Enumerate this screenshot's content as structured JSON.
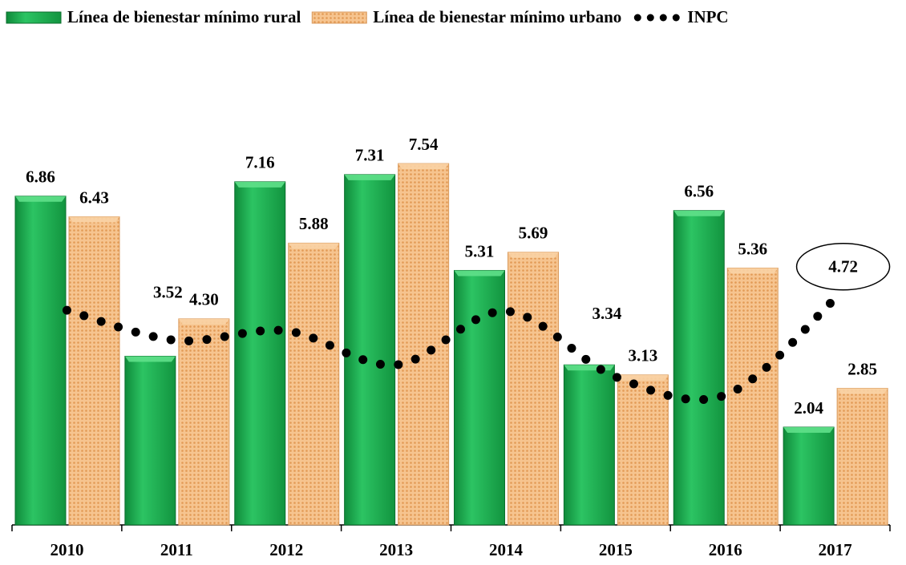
{
  "chart_data": {
    "type": "bar",
    "categories": [
      "2010",
      "2011",
      "2012",
      "2013",
      "2014",
      "2015",
      "2016",
      "2017"
    ],
    "series": [
      {
        "name": "Línea de bienestar mínimo rural",
        "color": "#1fb04f",
        "values": [
          6.86,
          3.52,
          7.16,
          7.31,
          5.31,
          3.34,
          6.56,
          2.04
        ],
        "value_labels": [
          "6.86",
          "3.52",
          "7.16",
          "7.31",
          "5.31",
          "3.34",
          "6.56",
          "2.04"
        ]
      },
      {
        "name": "Línea de bienestar mínimo urbano",
        "color": "#f2b77a",
        "values": [
          6.43,
          4.3,
          5.88,
          7.54,
          5.69,
          3.13,
          5.36,
          2.85
        ],
        "value_labels": [
          "6.43",
          "4.30",
          "5.88",
          "7.54",
          "5.69",
          "3.13",
          "5.36",
          "2.85"
        ]
      },
      {
        "name": "INPC",
        "type": "line",
        "color": "#000000",
        "values": [
          4.48,
          3.85,
          4.05,
          3.34,
          4.46,
          3.09,
          2.71,
          4.72
        ],
        "value_labels": [
          null,
          null,
          null,
          null,
          null,
          null,
          null,
          "4.72"
        ]
      }
    ],
    "ylim": [
      0,
      10
    ],
    "legend": "top"
  }
}
